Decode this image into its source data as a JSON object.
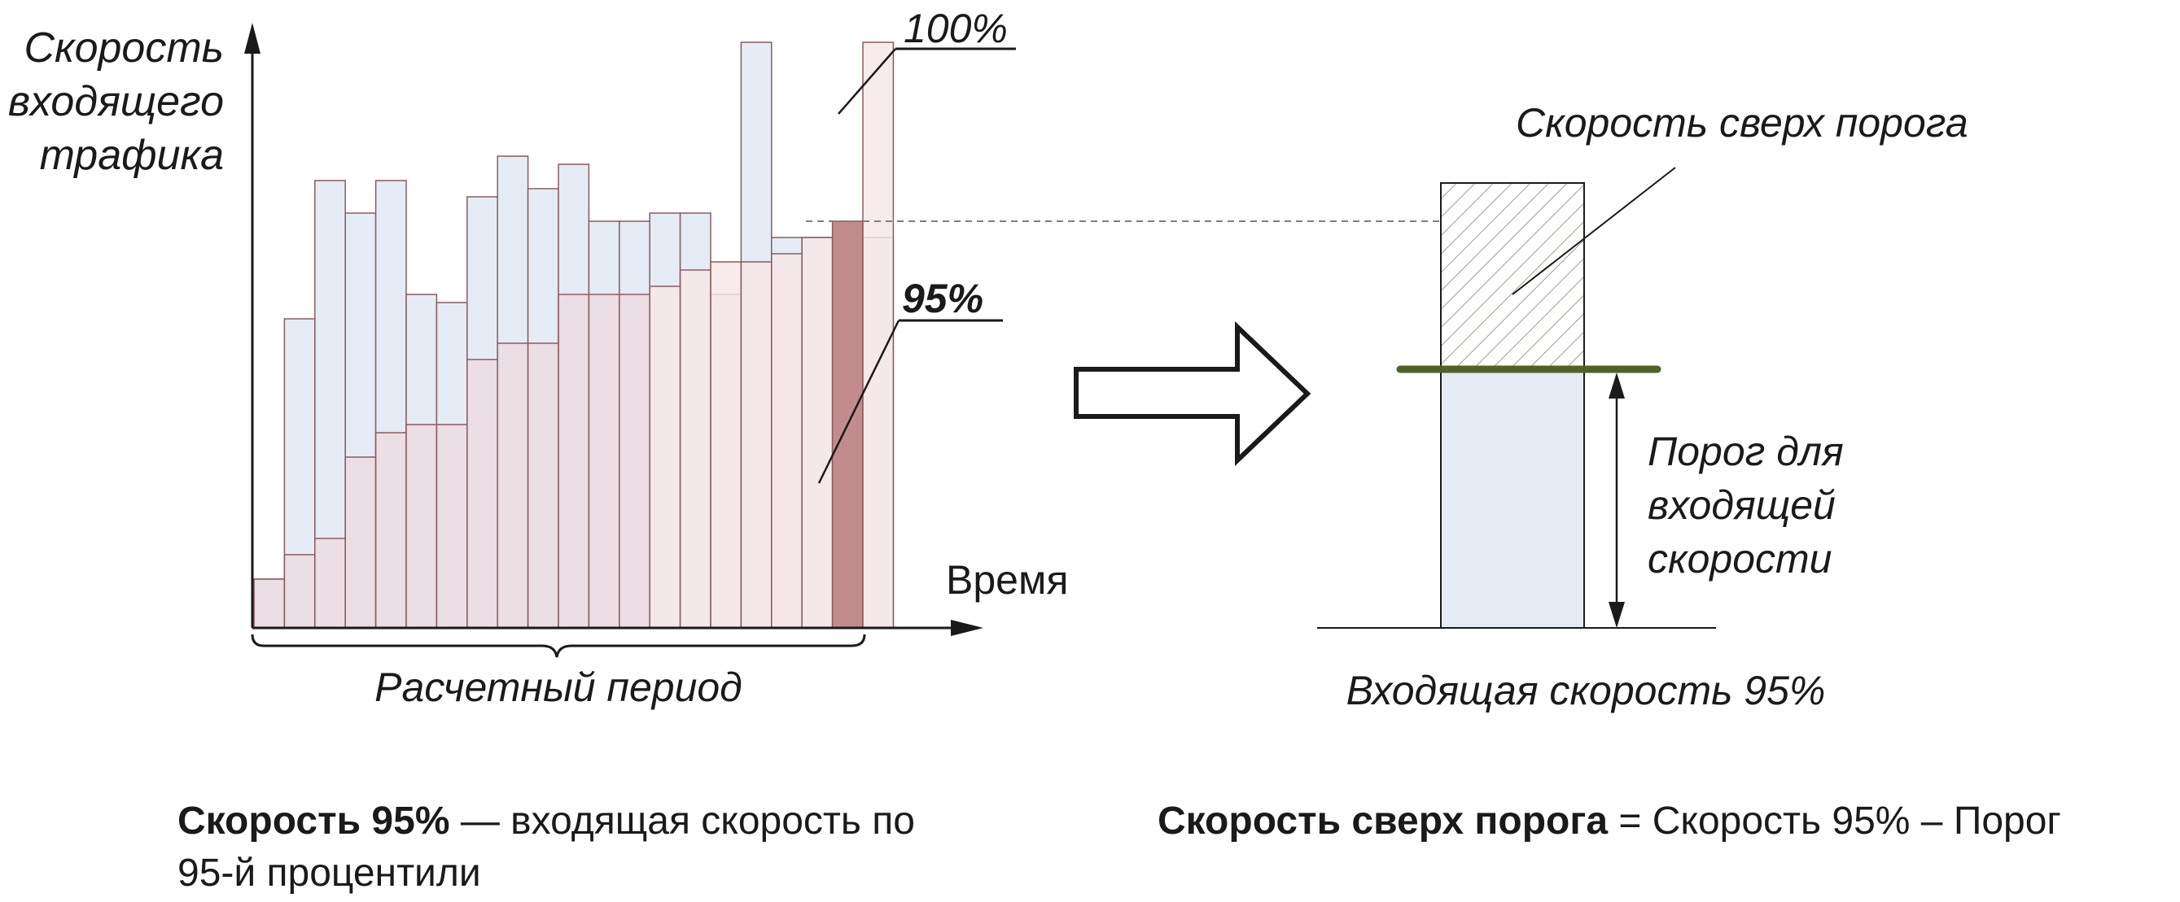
{
  "left_chart": {
    "y_axis_label": [
      "Скорость",
      "входящего",
      "трафика"
    ],
    "x_axis_label": "Время",
    "period_label": "Расчетный период",
    "label_100": "100%",
    "label_95": "95%",
    "blue_values": [
      6,
      38,
      55,
      51,
      55,
      41,
      40,
      53,
      58,
      54,
      57,
      50,
      50,
      51,
      51,
      41,
      72,
      48,
      48,
      48,
      48
    ],
    "pink_values": [
      6,
      9,
      11,
      21,
      24,
      25,
      25,
      33,
      35,
      35,
      41,
      41,
      41,
      42,
      44,
      45,
      45,
      46,
      48,
      50,
      72
    ],
    "highlight_index": 19,
    "level_95": 50
  },
  "right_chart": {
    "over_label": "Скорость сверх порога",
    "threshold_label": [
      "Порог для",
      "входящей",
      "скорости"
    ],
    "bottom_label": "Входящая скорость 95%",
    "threshold_fraction": 0.58
  },
  "captions": {
    "left_bold": "Скорость 95%",
    "left_rest": " — входящая скорость по",
    "left_line2": "95-й процентили",
    "right_bold": "Скорость сверх порога",
    "right_rest": " = Скорость 95% – Порог"
  },
  "colors": {
    "blue_fill": "#e6ecf6",
    "pink_fill": "#ecdadf",
    "pink_light": "#f7e6e6",
    "highlight_fill": "#c28c8c",
    "threshold_line": "#4f6228",
    "axis": "#1a1a1a"
  }
}
